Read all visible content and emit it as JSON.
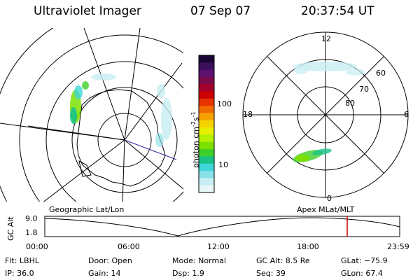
{
  "header": {
    "title": "Ultraviolet Imager",
    "date": "07 Sep 07",
    "time": "20:37:54 UT"
  },
  "colorbar": {
    "label": "photon cm",
    "label_exp1": "-2",
    "label_s": "s",
    "label_exp2": "-1",
    "ticks": [
      "100",
      "10"
    ],
    "colors": [
      "#1a0533",
      "#3b0f5c",
      "#5c1070",
      "#7a0a4a",
      "#a3002a",
      "#cc0000",
      "#e63300",
      "#f26b00",
      "#f5a300",
      "#f5d200",
      "#e6f000",
      "#b5f000",
      "#7de000",
      "#3fcf2a",
      "#18c287",
      "#3ed6d6",
      "#86e0e6",
      "#c7eef2",
      "#e8f6f8"
    ]
  },
  "left_map": {
    "caption": "Geographic Lat/Lon"
  },
  "right_map": {
    "caption": "Apex  MLat/MLT",
    "mlt_labels": [
      "12",
      "18",
      "6",
      "0"
    ],
    "lat_labels": [
      "60",
      "70",
      "80"
    ]
  },
  "timeline": {
    "ylabel": "GC Alt",
    "yticks": [
      "9.0",
      "1.8"
    ],
    "xticks": [
      "00:00",
      "06:00",
      "12:00",
      "18:00",
      "23:59"
    ],
    "current_time_fraction": 0.852
  },
  "status": {
    "filter": "Flt: LBHL",
    "ip": "IP: 36.0",
    "door": "Door: Open",
    "gain": "Gain: 14",
    "mode": "Mode: Normal",
    "dsp": "Dsp:     1.9",
    "gc_alt": "GC Alt: 8.5 Re",
    "seq": "Seq: 39",
    "glat": "GLat: −75.9",
    "glon": "GLon:  67.4"
  }
}
